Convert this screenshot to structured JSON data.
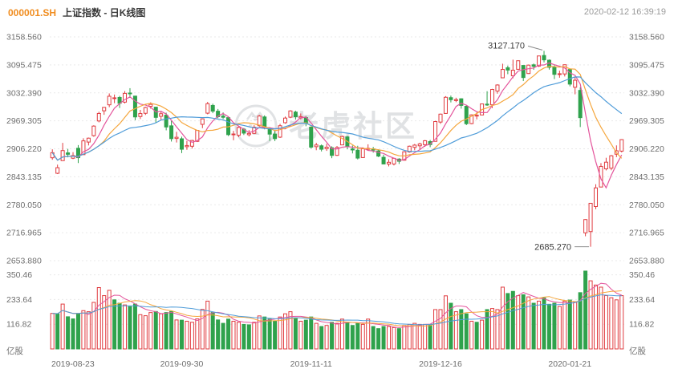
{
  "header": {
    "symbol": "000001.SH",
    "title": "上证指数 - 日K线图",
    "timestamp": "2020-02-12 16:39:19"
  },
  "watermark": {
    "text": "老虎社区",
    "logo_icon": "tiger-circle-logo"
  },
  "colors": {
    "up": "#e03b3f",
    "down": "#2fa24c",
    "ma5": "#e4559c",
    "ma10": "#f5a63c",
    "ma20": "#4f9cd9",
    "grid": "#e9e9e9",
    "annotation_line": "#8a8a8a",
    "symbol_accent": "#f08c1e"
  },
  "axes": {
    "price_ticks": [
      "3158.560",
      "3095.475",
      "3032.390",
      "2969.305",
      "2906.220",
      "2843.135",
      "2780.050",
      "2716.965",
      "2653.880"
    ],
    "volume_ticks": [
      "350.46",
      "233.64",
      "116.82"
    ],
    "volume_unit_left": "亿股",
    "volume_unit_right": "亿股",
    "date_labels": [
      {
        "label": "2019-08-23",
        "row": 0
      },
      {
        "label": "2019-09-30",
        "row": 25
      },
      {
        "label": "2019-11-11",
        "row": 50
      },
      {
        "label": "2019-12-16",
        "row": 75
      },
      {
        "label": "2020-01-21",
        "row": 100
      }
    ]
  },
  "annotations": {
    "high": {
      "label": "3127.170",
      "row": 95
    },
    "low": {
      "label": "2685.270",
      "row": 104
    }
  },
  "chart_data": {
    "type": "candlestick",
    "title": "000001.SH 上证指数 日K线图",
    "legend_position": "none",
    "grid": "horizontal-dotted",
    "price_axis": {
      "min": 2653.88,
      "max": 3158.56,
      "tick_step": 63.085
    },
    "volume_axis": {
      "ticks": [
        350.46,
        233.64,
        116.82
      ],
      "unit": "亿股"
    },
    "overlays": {
      "price_moving_averages": [
        5,
        10,
        20
      ],
      "volume_moving_averages": [
        5,
        10,
        20
      ]
    },
    "columns": [
      "date",
      "open",
      "high",
      "low",
      "close",
      "volume"
    ],
    "rows": [
      [
        "2019-08-23",
        2886.0,
        2905.0,
        2881.5,
        2897.4,
        168
      ],
      [
        "2019-08-26",
        2851.0,
        2870.5,
        2849.2,
        2863.6,
        166
      ],
      [
        "2019-08-27",
        2879.5,
        2919.6,
        2879.4,
        2902.2,
        212
      ],
      [
        "2019-08-28",
        2897.0,
        2906.0,
        2887.0,
        2893.8,
        152
      ],
      [
        "2019-08-29",
        2885.0,
        2898.6,
        2883.0,
        2890.9,
        142
      ],
      [
        "2019-08-30",
        2907.4,
        2914.6,
        2874.1,
        2886.2,
        166
      ],
      [
        "2019-09-02",
        2893.0,
        2930.0,
        2892.8,
        2924.1,
        181
      ],
      [
        "2019-09-03",
        2921.4,
        2931.5,
        2913.8,
        2930.2,
        176
      ],
      [
        "2019-09-04",
        2935.9,
        2959.2,
        2933.4,
        2957.4,
        220
      ],
      [
        "2019-09-05",
        2969.0,
        2989.8,
        2965.9,
        2985.9,
        290
      ],
      [
        "2019-09-06",
        2991.9,
        3000.4,
        2982.9,
        2999.6,
        252
      ],
      [
        "2019-09-09",
        3005.4,
        3031.1,
        3000.1,
        3024.7,
        277
      ],
      [
        "2019-09-10",
        3019.7,
        3028.6,
        3009.1,
        3021.2,
        232
      ],
      [
        "2019-09-11",
        3022.0,
        3025.5,
        2998.2,
        3008.8,
        216
      ],
      [
        "2019-09-12",
        3011.5,
        3036.3,
        3008.5,
        3031.2,
        208
      ],
      [
        "2019-09-16",
        3032.0,
        3042.9,
        3023.0,
        3030.8,
        200
      ],
      [
        "2019-09-17",
        3025.0,
        3025.8,
        2970.7,
        2978.1,
        212
      ],
      [
        "2019-09-18",
        2979.0,
        2994.0,
        2973.4,
        2985.7,
        162
      ],
      [
        "2019-09-19",
        2986.3,
        3000.9,
        2982.6,
        2999.3,
        157
      ],
      [
        "2019-09-20",
        3002.0,
        3011.0,
        2996.7,
        3006.4,
        172
      ],
      [
        "2019-09-23",
        3000.0,
        3001.0,
        2965.0,
        2977.1,
        177
      ],
      [
        "2019-09-24",
        2979.5,
        2990.5,
        2970.0,
        2985.3,
        166
      ],
      [
        "2019-09-25",
        2982.0,
        2987.6,
        2947.9,
        2955.4,
        172
      ],
      [
        "2019-09-26",
        2958.0,
        2969.0,
        2922.6,
        2929.1,
        177
      ],
      [
        "2019-09-27",
        2929.5,
        2944.5,
        2920.4,
        2932.2,
        137
      ],
      [
        "2019-09-30",
        2928.8,
        2933.6,
        2896.5,
        2905.2,
        136
      ],
      [
        "2019-10-08",
        2911.0,
        2923.9,
        2904.0,
        2913.6,
        131
      ],
      [
        "2019-10-09",
        2912.0,
        2926.5,
        2906.9,
        2924.9,
        126
      ],
      [
        "2019-10-10",
        2923.0,
        2948.7,
        2921.5,
        2947.7,
        142
      ],
      [
        "2019-10-11",
        2961.4,
        2974.3,
        2952.8,
        2973.7,
        187
      ],
      [
        "2019-10-14",
        2986.6,
        3012.0,
        2984.0,
        3007.9,
        226
      ],
      [
        "2019-10-15",
        3004.0,
        3008.0,
        2986.5,
        2991.1,
        172
      ],
      [
        "2019-10-16",
        2991.0,
        2996.0,
        2975.0,
        2978.7,
        137
      ],
      [
        "2019-10-17",
        2980.0,
        2988.3,
        2973.6,
        2977.3,
        121
      ],
      [
        "2019-10-18",
        2976.5,
        2978.6,
        2935.0,
        2938.1,
        141
      ],
      [
        "2019-10-21",
        2939.0,
        2946.6,
        2925.5,
        2939.6,
        131
      ],
      [
        "2019-10-22",
        2936.7,
        2957.0,
        2932.5,
        2954.4,
        126
      ],
      [
        "2019-10-23",
        2950.5,
        2953.1,
        2937.4,
        2941.6,
        116
      ],
      [
        "2019-10-24",
        2938.0,
        2948.5,
        2934.0,
        2940.9,
        114
      ],
      [
        "2019-10-25",
        2941.0,
        2959.4,
        2939.6,
        2954.9,
        126
      ],
      [
        "2019-10-28",
        2958.3,
        2982.7,
        2956.2,
        2980.1,
        156
      ],
      [
        "2019-10-29",
        2978.0,
        2981.6,
        2950.1,
        2954.2,
        151
      ],
      [
        "2019-10-30",
        2952.0,
        2955.0,
        2924.0,
        2939.3,
        141
      ],
      [
        "2019-10-31",
        2939.5,
        2946.8,
        2923.6,
        2929.1,
        131
      ],
      [
        "2019-11-01",
        2932.5,
        2962.4,
        2930.7,
        2958.2,
        151
      ],
      [
        "2019-11-04",
        2965.0,
        2978.9,
        2962.8,
        2975.5,
        166
      ],
      [
        "2019-11-05",
        2977.5,
        2993.3,
        2975.4,
        2991.6,
        176
      ],
      [
        "2019-11-06",
        2989.0,
        2992.1,
        2972.0,
        2978.6,
        146
      ],
      [
        "2019-11-07",
        2976.0,
        2985.9,
        2972.6,
        2978.7,
        131
      ],
      [
        "2019-11-08",
        2976.7,
        2980.2,
        2957.1,
        2964.2,
        136
      ],
      [
        "2019-11-11",
        2955.0,
        2956.1,
        2906.8,
        2910.0,
        151
      ],
      [
        "2019-11-12",
        2911.0,
        2919.8,
        2903.0,
        2914.8,
        121
      ],
      [
        "2019-11-13",
        2913.0,
        2915.9,
        2900.3,
        2905.2,
        106
      ],
      [
        "2019-11-14",
        2906.5,
        2917.5,
        2901.5,
        2909.9,
        111
      ],
      [
        "2019-11-15",
        2908.5,
        2911.9,
        2885.1,
        2891.3,
        126
      ],
      [
        "2019-11-18",
        2891.5,
        2912.6,
        2890.1,
        2909.2,
        121
      ],
      [
        "2019-11-19",
        2915.0,
        2936.0,
        2914.5,
        2934.0,
        141
      ],
      [
        "2019-11-20",
        2933.0,
        2935.3,
        2905.0,
        2911.1,
        126
      ],
      [
        "2019-11-21",
        2906.0,
        2913.6,
        2895.8,
        2903.6,
        111
      ],
      [
        "2019-11-22",
        2903.0,
        2913.0,
        2882.2,
        2885.3,
        121
      ],
      [
        "2019-11-25",
        2886.5,
        2909.5,
        2885.6,
        2906.2,
        116
      ],
      [
        "2019-11-26",
        2905.0,
        2916.3,
        2902.3,
        2907.1,
        141
      ],
      [
        "2019-11-27",
        2906.0,
        2910.4,
        2897.6,
        2903.2,
        106
      ],
      [
        "2019-11-28",
        2901.5,
        2905.2,
        2887.5,
        2889.7,
        96
      ],
      [
        "2019-11-29",
        2887.0,
        2893.0,
        2871.0,
        2872.0,
        106
      ],
      [
        "2019-12-02",
        2871.8,
        2882.8,
        2866.5,
        2875.8,
        106
      ],
      [
        "2019-12-03",
        2872.0,
        2885.4,
        2868.7,
        2884.7,
        101
      ],
      [
        "2019-12-04",
        2883.0,
        2885.0,
        2872.0,
        2878.1,
        96
      ],
      [
        "2019-12-05",
        2880.5,
        2901.0,
        2879.5,
        2899.5,
        111
      ],
      [
        "2019-12-06",
        2899.0,
        2913.4,
        2897.4,
        2912.0,
        116
      ],
      [
        "2019-12-09",
        2909.5,
        2917.1,
        2902.9,
        2914.5,
        121
      ],
      [
        "2019-12-10",
        2913.0,
        2919.9,
        2905.5,
        2917.3,
        116
      ],
      [
        "2019-12-11",
        2915.5,
        2926.0,
        2910.7,
        2924.4,
        116
      ],
      [
        "2019-12-12",
        2922.5,
        2926.1,
        2909.8,
        2915.7,
        116
      ],
      [
        "2019-12-13",
        2923.0,
        2969.1,
        2922.4,
        2967.7,
        186
      ],
      [
        "2019-12-16",
        2966.5,
        2985.6,
        2962.5,
        2984.4,
        186
      ],
      [
        "2019-12-17",
        2986.0,
        3025.0,
        2985.5,
        3022.4,
        251
      ],
      [
        "2019-12-18",
        3021.5,
        3026.2,
        3010.8,
        3017.0,
        216
      ],
      [
        "2019-12-19",
        3015.0,
        3021.4,
        3011.4,
        3017.1,
        176
      ],
      [
        "2019-12-20",
        3019.0,
        3020.2,
        2996.8,
        3004.1,
        186
      ],
      [
        "2019-12-23",
        3002.0,
        3004.0,
        2959.6,
        2962.8,
        166
      ],
      [
        "2019-12-24",
        2963.0,
        2983.8,
        2961.6,
        2982.7,
        131
      ],
      [
        "2019-12-25",
        2980.4,
        2988.2,
        2972.5,
        2981.9,
        126
      ],
      [
        "2019-12-26",
        2982.5,
        3007.6,
        2982.3,
        3007.4,
        136
      ],
      [
        "2019-12-27",
        3006.9,
        3036.1,
        3003.0,
        3005.0,
        186
      ],
      [
        "2019-12-30",
        3005.5,
        3041.4,
        2998.2,
        3040.0,
        191
      ],
      [
        "2019-12-31",
        3036.4,
        3051.7,
        3030.5,
        3050.1,
        186
      ],
      [
        "2020-01-02",
        3066.3,
        3098.1,
        3066.3,
        3085.2,
        292
      ],
      [
        "2020-01-03",
        3089.0,
        3093.8,
        3074.5,
        3083.8,
        262
      ],
      [
        "2020-01-06",
        3070.9,
        3107.2,
        3065.3,
        3083.4,
        272
      ],
      [
        "2020-01-07",
        3085.5,
        3105.5,
        3084.3,
        3104.8,
        252
      ],
      [
        "2020-01-08",
        3094.2,
        3094.2,
        3059.1,
        3066.9,
        256
      ],
      [
        "2020-01-09",
        3075.9,
        3096.1,
        3075.1,
        3094.9,
        246
      ],
      [
        "2020-01-10",
        3095.6,
        3098.4,
        3084.3,
        3092.3,
        216
      ],
      [
        "2020-01-13",
        3092.8,
        3116.0,
        3090.7,
        3115.6,
        226
      ],
      [
        "2020-01-14",
        3116.6,
        3127.17,
        3101.1,
        3106.8,
        241
      ],
      [
        "2020-01-15",
        3106.0,
        3107.7,
        3084.8,
        3090.0,
        211
      ],
      [
        "2020-01-16",
        3091.0,
        3094.7,
        3063.4,
        3074.1,
        216
      ],
      [
        "2020-01-17",
        3074.7,
        3082.4,
        3066.5,
        3075.5,
        201
      ],
      [
        "2020-01-20",
        3075.0,
        3096.3,
        3069.3,
        3095.8,
        226
      ],
      [
        "2020-01-21",
        3085.0,
        3085.0,
        3047.1,
        3052.1,
        231
      ],
      [
        "2020-01-22",
        3045.0,
        3067.4,
        3029.1,
        3060.8,
        221
      ],
      [
        "2020-01-23",
        3037.9,
        3045.0,
        2955.3,
        2976.5,
        266
      ],
      [
        "2020-02-03",
        2716.7,
        2747.5,
        2709.0,
        2746.6,
        368
      ],
      [
        "2020-02-04",
        2719.5,
        2783.6,
        2685.27,
        2783.3,
        322
      ],
      [
        "2020-02-05",
        2776.0,
        2826.3,
        2770.0,
        2818.1,
        302
      ],
      [
        "2020-02-06",
        2820.0,
        2874.0,
        2819.3,
        2866.5,
        292
      ],
      [
        "2020-02-07",
        2861.0,
        2886.0,
        2857.5,
        2876.0,
        252
      ],
      [
        "2020-02-10",
        2862.6,
        2892.2,
        2857.8,
        2890.5,
        242
      ],
      [
        "2020-02-11",
        2894.0,
        2913.9,
        2887.4,
        2901.7,
        232
      ],
      [
        "2020-02-12",
        2901.0,
        2928.0,
        2898.0,
        2926.9,
        252
      ]
    ]
  }
}
